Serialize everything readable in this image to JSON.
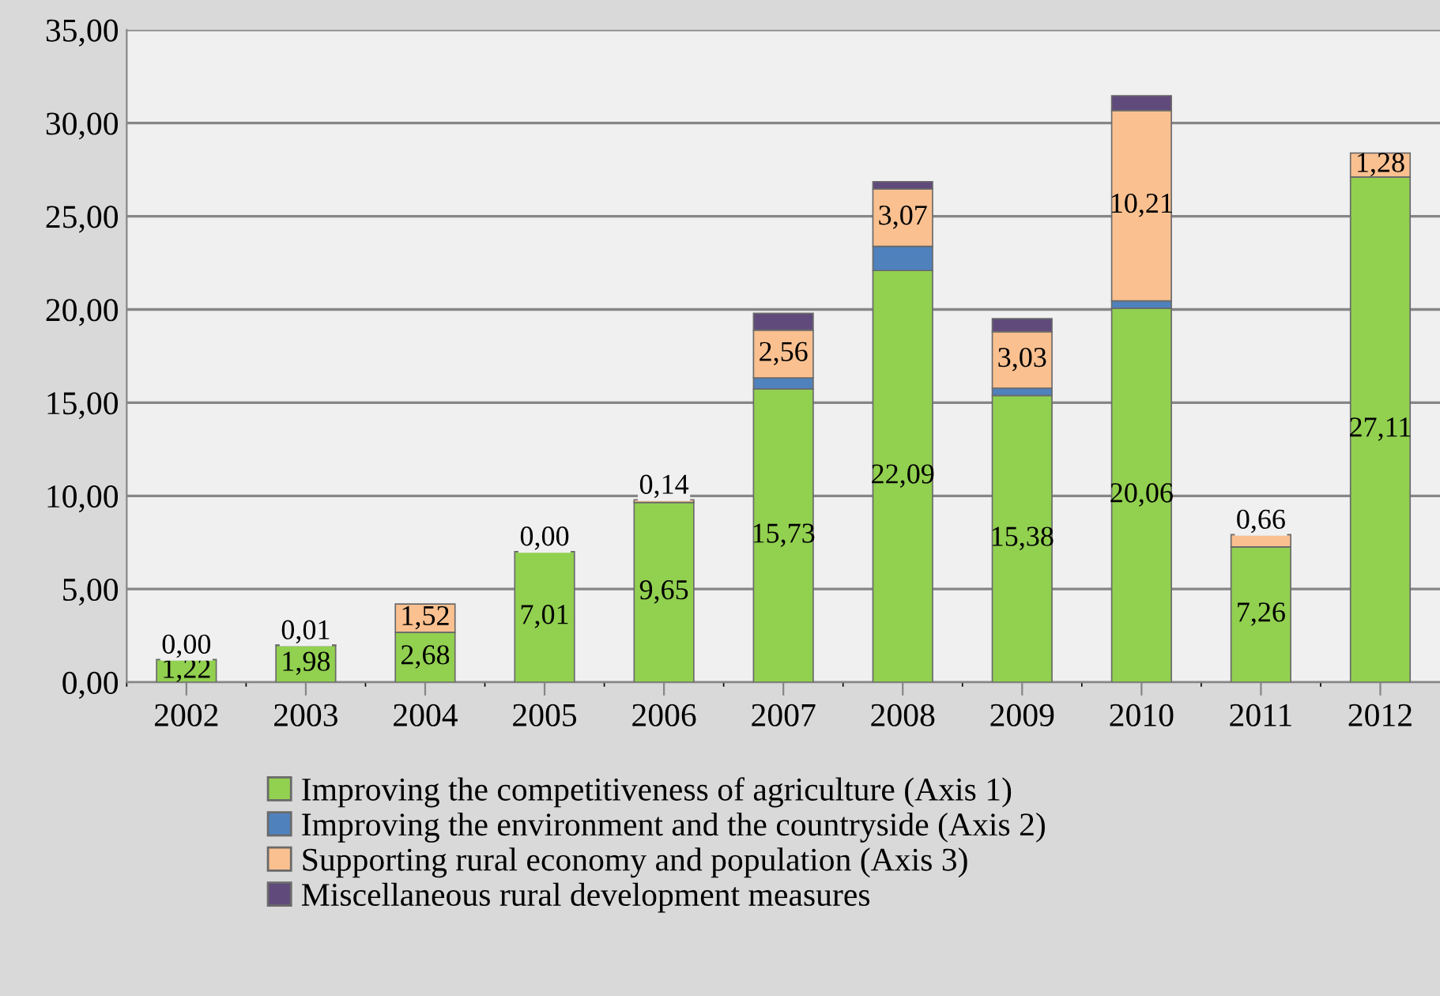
{
  "chart_data": {
    "type": "bar",
    "stacked": true,
    "categories": [
      "2002",
      "2003",
      "2004",
      "2005",
      "2006",
      "2007",
      "2008",
      "2009",
      "2010",
      "2011",
      "2012"
    ],
    "series": [
      {
        "name": "Improving the competitiveness of agriculture (Axis 1)",
        "color": "#92d050",
        "values": [
          1.22,
          1.98,
          2.68,
          7.01,
          9.65,
          15.73,
          22.09,
          15.38,
          20.06,
          7.26,
          27.11
        ],
        "value_labels": [
          "1,22",
          "1,98",
          "2,68",
          "7,01",
          "9,65",
          "15,73",
          "22,09",
          "15,38",
          "20,06",
          "7,26",
          "27,11"
        ]
      },
      {
        "name": "Improving the environment and the countryside (Axis 2)",
        "color": "#4f81bd",
        "values": [
          null,
          null,
          null,
          null,
          null,
          0.6,
          1.3,
          0.4,
          0.4,
          null,
          null
        ]
      },
      {
        "name": "Supporting rural economy and population (Axis 3)",
        "color": "#fac090",
        "values": [
          0.0,
          0.01,
          1.52,
          0.0,
          0.14,
          2.56,
          3.07,
          3.03,
          10.21,
          0.66,
          1.28
        ],
        "value_labels": [
          "0,00",
          "0,01",
          "1,52",
          "0,00",
          "0,14",
          "2,56",
          "3,07",
          "3,03",
          "10,21",
          "0,66",
          "1,28"
        ]
      },
      {
        "name": "Miscellaneous rural development measures",
        "color": "#604a7b",
        "values": [
          null,
          null,
          null,
          null,
          null,
          0.9,
          0.4,
          0.7,
          0.8,
          null,
          null
        ]
      }
    ],
    "ylim": [
      0,
      35
    ],
    "yticks": [
      {
        "value": 0,
        "label": "0,00"
      },
      {
        "value": 5,
        "label": "5,00"
      },
      {
        "value": 10,
        "label": "10,00"
      },
      {
        "value": 15,
        "label": "15,00"
      },
      {
        "value": 20,
        "label": "20,00"
      },
      {
        "value": 25,
        "label": "25,00"
      },
      {
        "value": 30,
        "label": "30,00"
      },
      {
        "value": 35,
        "label": "35,00"
      }
    ],
    "grid": "y",
    "legend": "bottom"
  }
}
